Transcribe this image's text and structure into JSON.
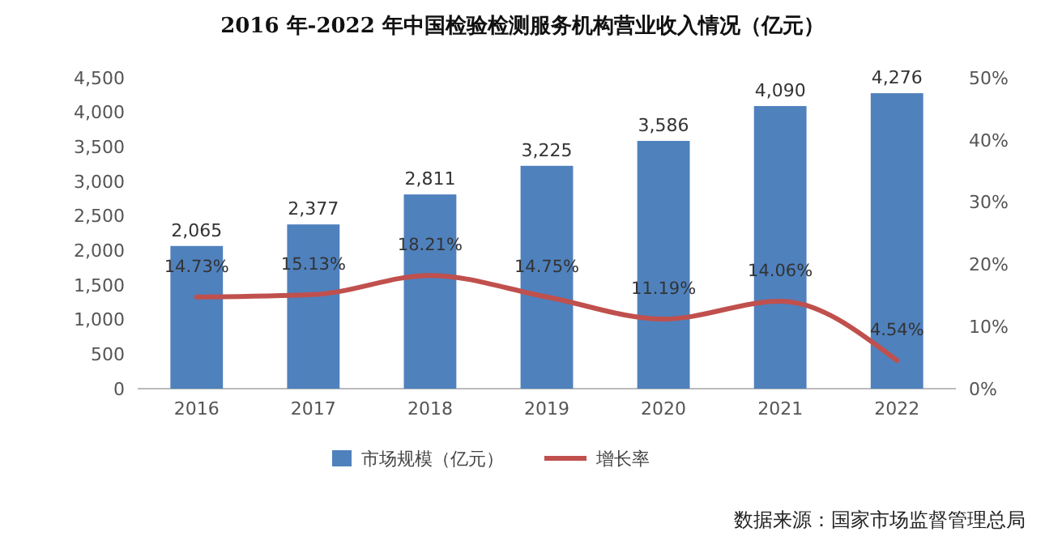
{
  "chart_data": {
    "type": "bar",
    "title": "2016 年-2022 年中国检验检测服务机构营业收入情况（亿元）",
    "categories": [
      "2016",
      "2017",
      "2018",
      "2019",
      "2020",
      "2021",
      "2022"
    ],
    "series": [
      {
        "name": "市场规模（亿元）",
        "color": "#4f81bd",
        "values": [
          2065,
          2377,
          2811,
          3225,
          3586,
          4090,
          4276
        ],
        "value_labels": [
          "2,065",
          "2,377",
          "2,811",
          "3,225",
          "3,586",
          "4,090",
          "4,276"
        ]
      },
      {
        "name": "增长率",
        "type": "line",
        "axis": "y2",
        "color": "#c0504d",
        "values": [
          14.73,
          15.13,
          18.21,
          14.75,
          11.19,
          14.06,
          4.54
        ],
        "value_labels": [
          "14.73%",
          "15.13%",
          "18.21%",
          "14.75%",
          "11.19%",
          "14.06%",
          "4.54%"
        ]
      }
    ],
    "ylim": [
      0,
      4500
    ],
    "yticks": [
      {
        "value": 0,
        "label": "0"
      },
      {
        "value": 500,
        "label": "500"
      },
      {
        "value": 1000,
        "label": "1,000"
      },
      {
        "value": 1500,
        "label": "1,500"
      },
      {
        "value": 2000,
        "label": "2,000"
      },
      {
        "value": 2500,
        "label": "2,500"
      },
      {
        "value": 3000,
        "label": "3,000"
      },
      {
        "value": 3500,
        "label": "3,500"
      },
      {
        "value": 4000,
        "label": "4,000"
      },
      {
        "value": 4500,
        "label": "4,500"
      }
    ],
    "y2lim": [
      0,
      50
    ],
    "y2ticks": [
      {
        "value": 0,
        "label": "0%"
      },
      {
        "value": 10,
        "label": "10%"
      },
      {
        "value": 20,
        "label": "20%"
      },
      {
        "value": 30,
        "label": "30%"
      },
      {
        "value": 40,
        "label": "40%"
      },
      {
        "value": 50,
        "label": "50%"
      }
    ],
    "legend": "bottom",
    "line_style": "solid",
    "marker": "none",
    "annotations": [
      "数据来源：国家市场监督管理总局"
    ]
  }
}
